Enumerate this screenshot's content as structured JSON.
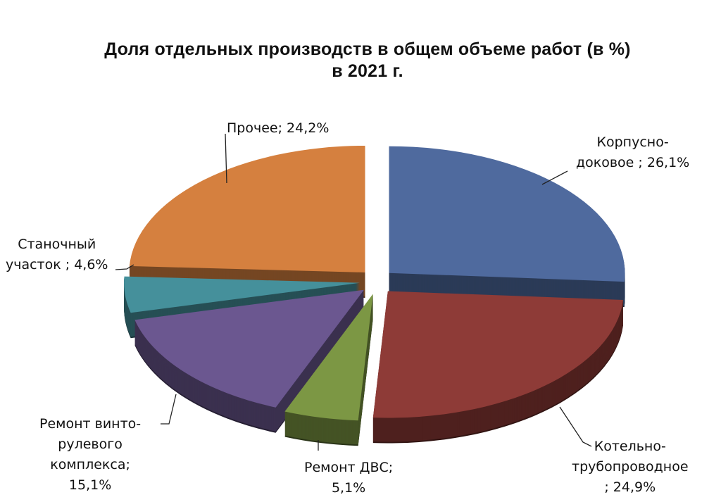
{
  "chart_data": {
    "type": "pie",
    "style": "3d-exploded",
    "title_line1": "Доля отдельных производств в общем объеме работ (в %)",
    "title_line2": "в 2021 г.",
    "slices": [
      {
        "label": "Корпусно-доковое",
        "value": 26.1,
        "color": "#4f6a9e",
        "text_lines": [
          "Корпусно-",
          "доковое  ; 26,1%"
        ]
      },
      {
        "label": "Котельно-трубопроводное",
        "value": 24.9,
        "color": "#8e3b37",
        "text_lines": [
          "Котельно-",
          "трубопроводное",
          "; 24,9%"
        ]
      },
      {
        "label": "Ремонт ДВС",
        "value": 5.1,
        "color": "#7c9744",
        "text_lines": [
          "Ремонт ДВС;",
          "5,1%"
        ]
      },
      {
        "label": "Ремонт винто-рулевого комплекса",
        "value": 15.1,
        "color": "#6b5790",
        "text_lines": [
          "Ремонт винто-",
          "рулевого",
          "комплекса;",
          "15,1%"
        ]
      },
      {
        "label": "Станочный участок",
        "value": 4.6,
        "color": "#45909b",
        "text_lines": [
          "Станочный",
          "участок ; 4,6%"
        ]
      },
      {
        "label": "Прочее",
        "value": 24.2,
        "color": "#d5803f",
        "text_lines": [
          "Прочее; 24,2%"
        ]
      }
    ]
  }
}
